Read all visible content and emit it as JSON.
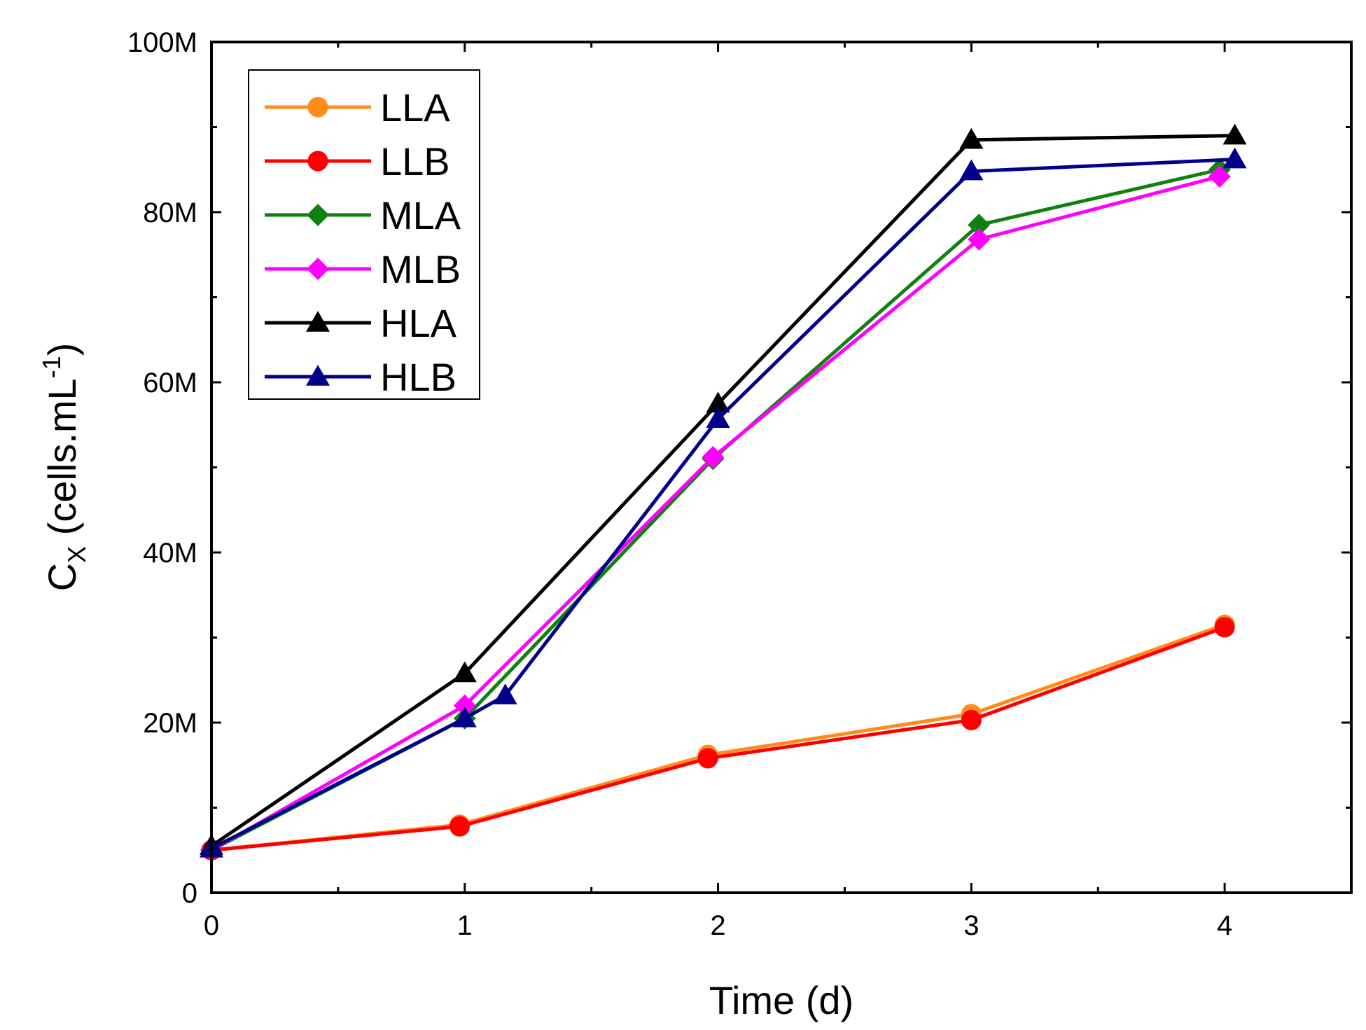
{
  "chart_data": {
    "type": "line",
    "title": "",
    "xlabel": "Time (d)",
    "ylabel_main": "C",
    "ylabel_sub": "X",
    "ylabel_unit": " (cells.mL",
    "ylabel_sup": "-1",
    "ylabel_close": ")",
    "xlim": [
      0,
      4.5
    ],
    "ylim": [
      0,
      100000000
    ],
    "x_ticks": [
      0,
      1,
      2,
      3,
      4
    ],
    "x_tick_labels": [
      "0",
      "1",
      "2",
      "3",
      "4"
    ],
    "y_ticks": [
      0,
      20000000,
      40000000,
      60000000,
      80000000,
      100000000
    ],
    "y_tick_labels": [
      "0",
      "20M",
      "40M",
      "60M",
      "80M",
      "100M"
    ],
    "grid": false,
    "legend_position": "top-left",
    "series": [
      {
        "name": "LLA",
        "color": "#ff8c1a",
        "marker": "circle",
        "points": [
          [
            0,
            5000000
          ],
          [
            0.98,
            8000000
          ],
          [
            1.96,
            16200000
          ],
          [
            3.0,
            21000000
          ],
          [
            4.0,
            31500000
          ]
        ]
      },
      {
        "name": "LLB",
        "color": "#ff0000",
        "marker": "circle",
        "points": [
          [
            0,
            5000000
          ],
          [
            0.98,
            7800000
          ],
          [
            1.96,
            15800000
          ],
          [
            3.0,
            20300000
          ],
          [
            4.0,
            31200000
          ]
        ]
      },
      {
        "name": "MLA",
        "color": "#108010",
        "marker": "diamond",
        "points": [
          [
            0,
            5000000
          ],
          [
            1.0,
            20500000
          ],
          [
            1.98,
            51000000
          ],
          [
            3.03,
            78500000
          ],
          [
            3.98,
            85000000
          ]
        ]
      },
      {
        "name": "MLB",
        "color": "#ff00ff",
        "marker": "diamond",
        "points": [
          [
            0,
            5000000
          ],
          [
            1.0,
            22000000
          ],
          [
            1.98,
            51200000
          ],
          [
            3.03,
            76800000
          ],
          [
            3.98,
            84200000
          ]
        ]
      },
      {
        "name": "HLA",
        "color": "#000000",
        "marker": "triangle",
        "points": [
          [
            0,
            5500000
          ],
          [
            1.0,
            25800000
          ],
          [
            2.0,
            57500000
          ],
          [
            3.0,
            88500000
          ],
          [
            4.04,
            89000000
          ]
        ]
      },
      {
        "name": "HLB",
        "color": "#00008b",
        "marker": "triangle",
        "points": [
          [
            0,
            5200000
          ],
          [
            1.0,
            20500000
          ],
          [
            1.16,
            23200000
          ],
          [
            2.0,
            55700000
          ],
          [
            3.0,
            84800000
          ],
          [
            4.04,
            86200000
          ]
        ]
      }
    ]
  }
}
